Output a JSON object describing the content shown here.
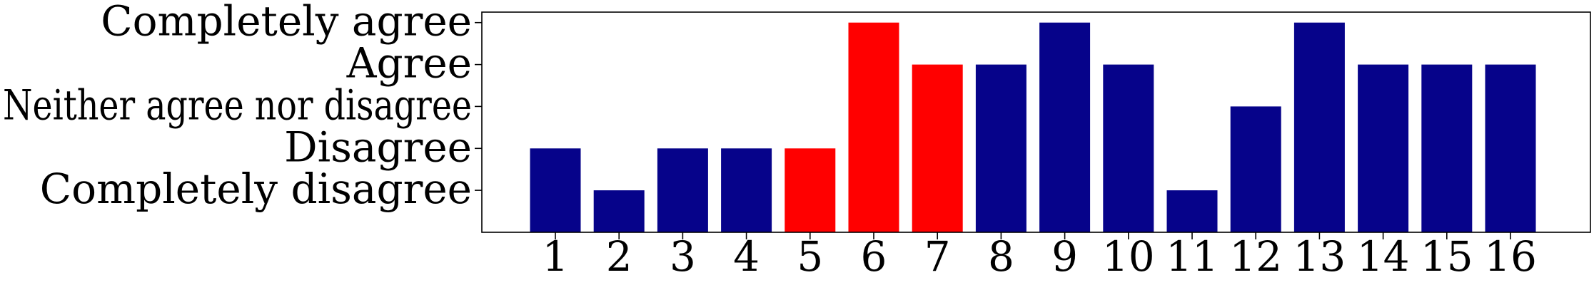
{
  "chart_data": {
    "type": "bar",
    "title": "",
    "xlabel": "",
    "ylabel": "",
    "categories": [
      "1",
      "2",
      "3",
      "4",
      "5",
      "6",
      "7",
      "8",
      "9",
      "10",
      "11",
      "12",
      "13",
      "14",
      "15",
      "16"
    ],
    "values": [
      2,
      1,
      2,
      2,
      2,
      5,
      4,
      4,
      5,
      4,
      1,
      3,
      5,
      4,
      4,
      4
    ],
    "highlighted_categories": [
      "5",
      "6",
      "7"
    ],
    "ylim": [
      0,
      5.25
    ],
    "y_ticks": [
      {
        "value": 1,
        "label": "Completely disagree"
      },
      {
        "value": 2,
        "label": "Disagree"
      },
      {
        "value": 3,
        "label": "Neither agree nor disagree"
      },
      {
        "value": 4,
        "label": "Agree"
      },
      {
        "value": 5,
        "label": "Completely agree"
      }
    ],
    "grid": false,
    "legend": "none",
    "colors": {
      "default_bar": "#06038a",
      "highlight_bar": "#ff0000",
      "default_label": "#000000",
      "highlight_label": "#ff0000"
    }
  }
}
